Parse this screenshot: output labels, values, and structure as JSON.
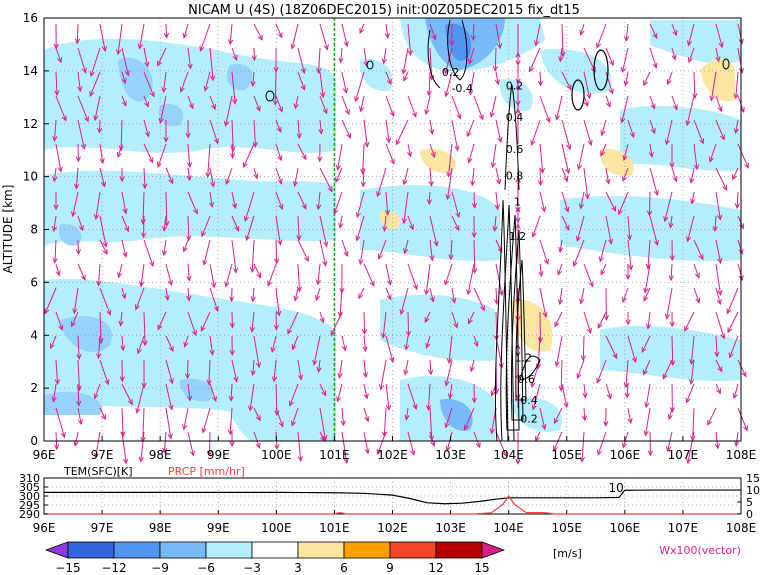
{
  "title": "NICAM U (4S) (18Z06DEC2015) init:00Z05DEC2015 fix_dt15",
  "colors": {
    "light_blue": "#b4eefa",
    "mid_blue": "#96d2fa",
    "blue": "#78b9fa",
    "deep_blue": "#5096f0",
    "yellow": "#fae6a0",
    "arrow": "#dc1e8c",
    "green_line": "#00b400",
    "prcp": "#ff3c3c",
    "tem": "#000000"
  },
  "chart_data": [
    {
      "type": "heatmap",
      "title": "NICAM U (4S) (18Z06DEC2015) init:00Z05DEC2015 fix_dt15",
      "ylabel": "ALTITUDE [km]",
      "x_ticks": [
        "96E",
        "97E",
        "98E",
        "99E",
        "100E",
        "101E",
        "102E",
        "103E",
        "104E",
        "105E",
        "106E",
        "107E",
        "108E"
      ],
      "y_ticks": [
        0,
        2,
        4,
        6,
        8,
        10,
        12,
        14,
        16
      ],
      "xlim": [
        96,
        108
      ],
      "ylim": [
        0,
        16
      ],
      "grid": true,
      "vertical_line_x": 101,
      "contour_labels": [
        {
          "text": "0.2",
          "x": 103.0,
          "y": 13.8
        },
        {
          "text": "-0.4",
          "x": 103.2,
          "y": 13.2
        },
        {
          "text": "0.2",
          "x": 104.1,
          "y": 13.3
        },
        {
          "text": "0.4",
          "x": 104.1,
          "y": 12.1
        },
        {
          "text": "0.6",
          "x": 104.1,
          "y": 10.9
        },
        {
          "text": "0.8",
          "x": 104.1,
          "y": 9.9
        },
        {
          "text": "1",
          "x": 104.15,
          "y": 8.9
        },
        {
          "text": "1.2",
          "x": 104.15,
          "y": 7.6
        },
        {
          "text": "1.2",
          "x": 104.25,
          "y": 3.0
        },
        {
          "text": "0.6",
          "x": 104.3,
          "y": 2.2
        },
        {
          "text": "0.4",
          "x": 104.35,
          "y": 1.4
        },
        {
          "text": "0.2",
          "x": 104.35,
          "y": 0.7
        }
      ],
      "vector_label": "Wx100(vector)"
    },
    {
      "type": "line",
      "labels": {
        "tem": "TEM(SFC)[K]",
        "prcp": "PRCP [mm/hr]"
      },
      "x_ticks": [
        "96E",
        "97E",
        "98E",
        "99E",
        "100E",
        "101E",
        "102E",
        "103E",
        "104E",
        "105E",
        "106E",
        "107E",
        "108E"
      ],
      "left_ticks": [
        290,
        295,
        300,
        305,
        310
      ],
      "right_ticks": [
        0,
        5,
        10,
        15
      ],
      "ylim_left": [
        290,
        310
      ],
      "ylim_right": [
        0,
        15
      ],
      "annotation": {
        "text": "10",
        "x": 105.85
      },
      "series": [
        {
          "name": "TEM(SFC)[K]",
          "axis": "left",
          "x": [
            96,
            96.5,
            97,
            97.5,
            98,
            98.5,
            99,
            99.5,
            100,
            100.5,
            101,
            101.5,
            102,
            102.3,
            102.6,
            102.9,
            103.2,
            103.5,
            103.8,
            104.0,
            104.5,
            105.0,
            105.5,
            105.9,
            106.0,
            106.5,
            107,
            107.5,
            108
          ],
          "y": [
            302.0,
            302.0,
            302.0,
            302.0,
            302.0,
            302.0,
            302.0,
            302.0,
            302.0,
            301.9,
            301.8,
            301.5,
            300.5,
            298.6,
            296.2,
            295.7,
            296.0,
            297.0,
            298.3,
            299.0,
            299.0,
            299.0,
            299.0,
            299.2,
            303.2,
            303.3,
            303.3,
            303.3,
            303.3
          ]
        },
        {
          "name": "PRCP [mm/hr]",
          "axis": "right",
          "x": [
            96,
            101.0,
            101.1,
            101.2,
            101.5,
            102.6,
            103.4,
            103.7,
            103.9,
            104.0,
            104.1,
            104.3,
            104.6,
            104.8,
            105.0,
            108
          ],
          "y": [
            0,
            0,
            0.6,
            0,
            0,
            0,
            0,
            0.5,
            4.0,
            7.5,
            4.0,
            0.6,
            0.6,
            0,
            0,
            0
          ]
        }
      ]
    },
    {
      "type": "legend-colorbar",
      "levels": [
        -15,
        -12,
        -9,
        -6,
        -3,
        3,
        6,
        9,
        12,
        15
      ],
      "colors": [
        "#8c3cdc",
        "#3264dc",
        "#5096f0",
        "#78b9fa",
        "#b4eefa",
        "#ffffff",
        "#fae6a0",
        "#ffa000",
        "#f04628",
        "#b40000",
        "#dc1e8c"
      ],
      "unit": "[m/s]"
    }
  ]
}
